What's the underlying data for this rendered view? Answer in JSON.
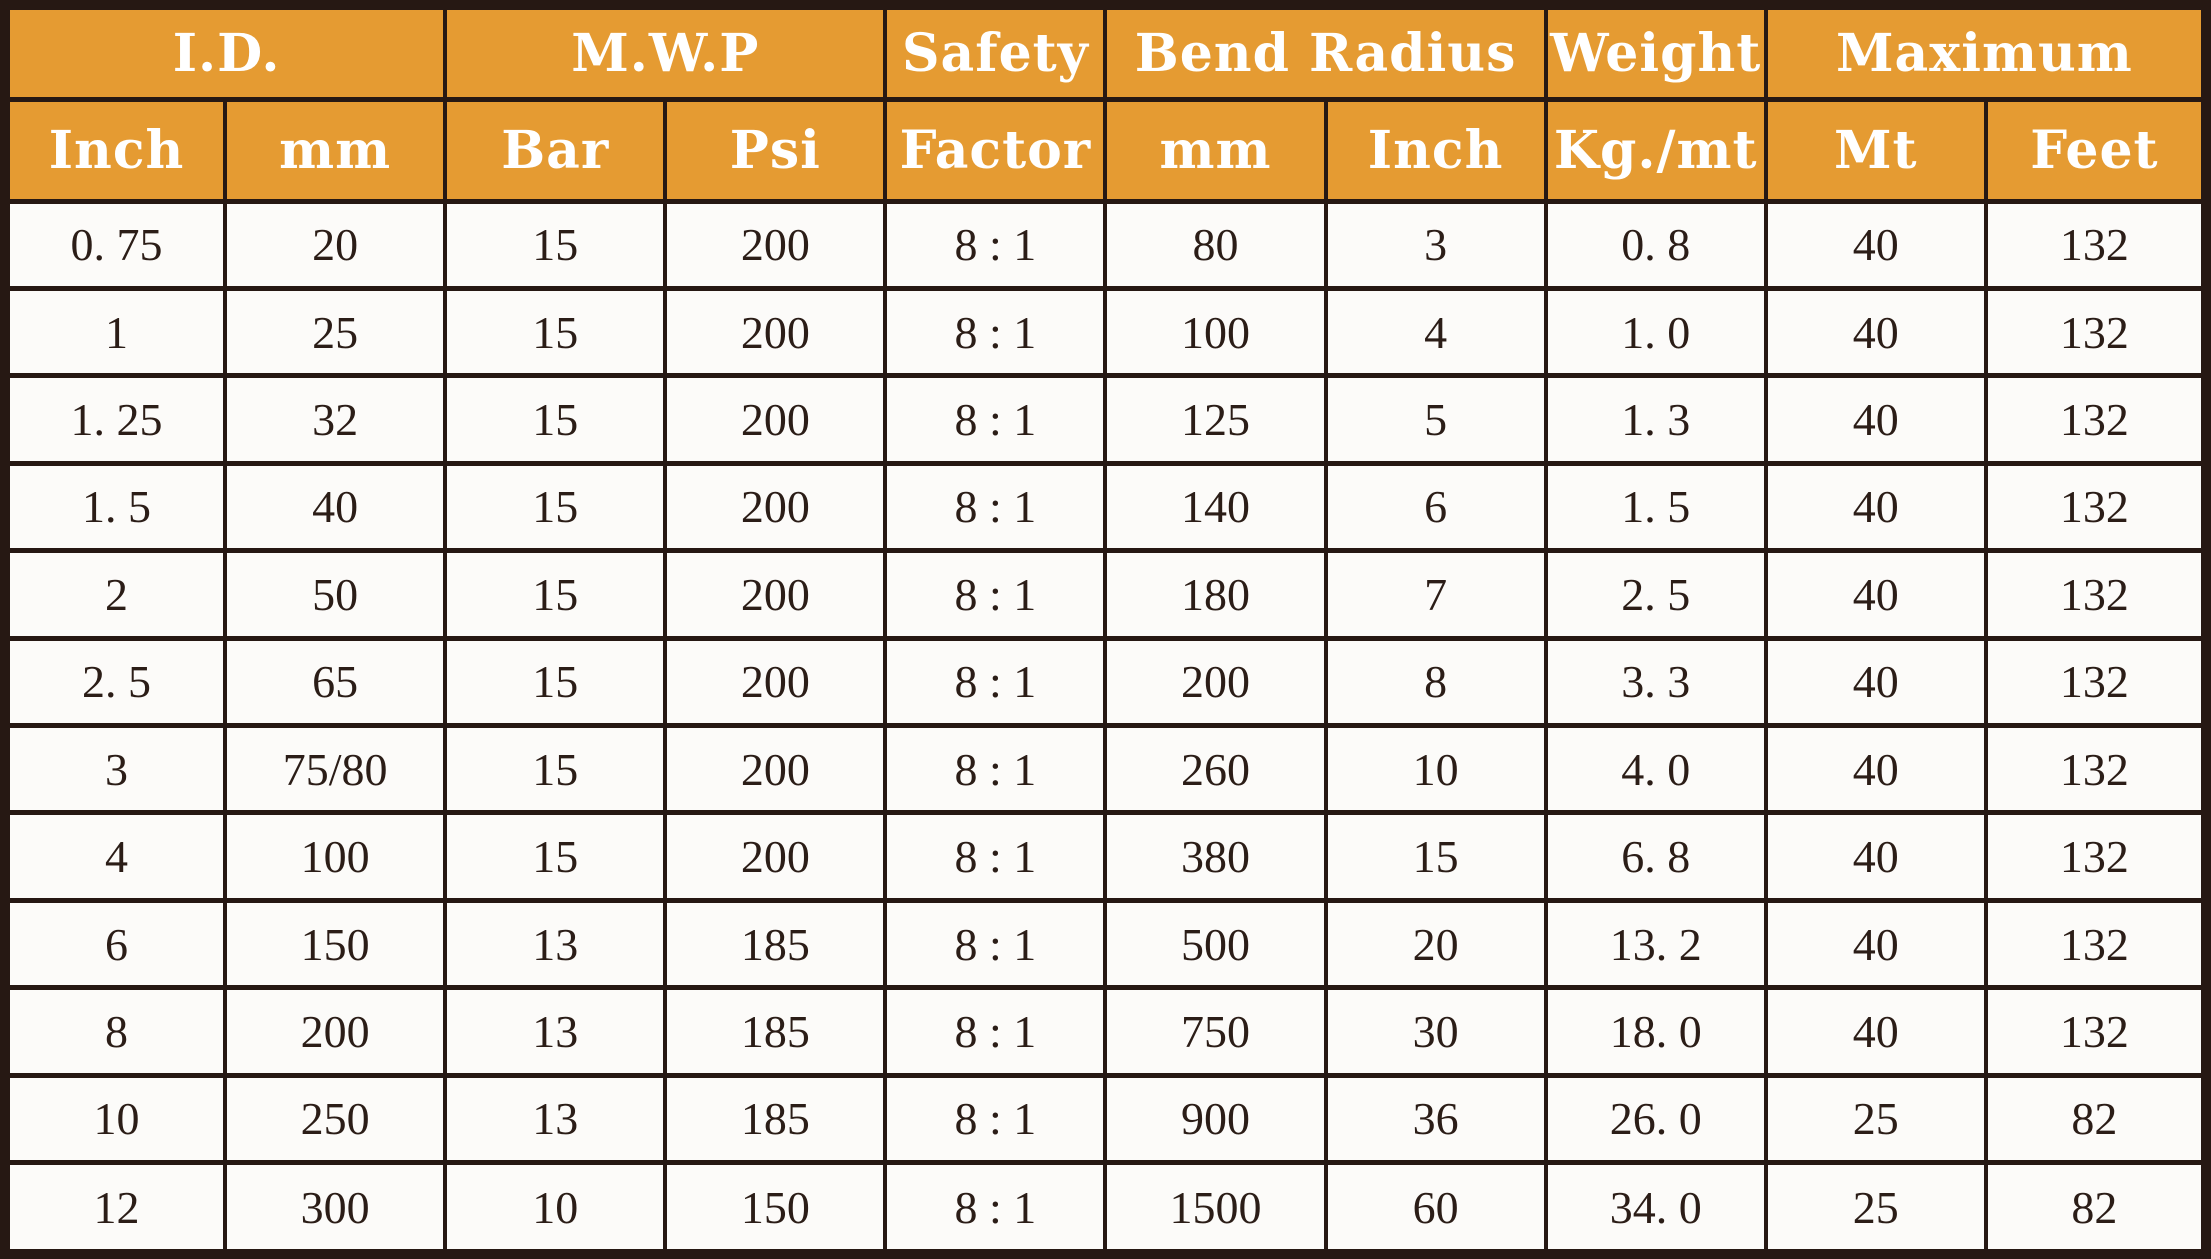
{
  "colors": {
    "header_bg": "#E59B32",
    "header_text": "#FFFFFF",
    "border": "#261813",
    "cell_bg": "#FCFBF9",
    "cell_text": "#2B1D17"
  },
  "table": {
    "top_headers": [
      {
        "label": "I.D.",
        "colspan": 2
      },
      {
        "label": "M.W.P",
        "colspan": 2
      },
      {
        "label": "Safety",
        "colspan": 1
      },
      {
        "label": "Bend Radius",
        "colspan": 2
      },
      {
        "label": "Weight",
        "colspan": 1
      },
      {
        "label": "Maximum",
        "colspan": 2
      }
    ],
    "sub_headers": [
      "Inch",
      "mm",
      "Bar",
      "Psi",
      "Factor",
      "mm",
      "Inch",
      "Kg./mt",
      "Mt",
      "Feet"
    ],
    "rows": [
      [
        "0. 75",
        "20",
        "15",
        "200",
        "8 : 1",
        "80",
        "3",
        "0. 8",
        "40",
        "132"
      ],
      [
        "1",
        "25",
        "15",
        "200",
        "8 : 1",
        "100",
        "4",
        "1. 0",
        "40",
        "132"
      ],
      [
        "1. 25",
        "32",
        "15",
        "200",
        "8 : 1",
        "125",
        "5",
        "1. 3",
        "40",
        "132"
      ],
      [
        "1. 5",
        "40",
        "15",
        "200",
        "8 : 1",
        "140",
        "6",
        "1. 5",
        "40",
        "132"
      ],
      [
        "2",
        "50",
        "15",
        "200",
        "8 : 1",
        "180",
        "7",
        "2. 5",
        "40",
        "132"
      ],
      [
        "2. 5",
        "65",
        "15",
        "200",
        "8 : 1",
        "200",
        "8",
        "3. 3",
        "40",
        "132"
      ],
      [
        "3",
        "75/80",
        "15",
        "200",
        "8 : 1",
        "260",
        "10",
        "4. 0",
        "40",
        "132"
      ],
      [
        "4",
        "100",
        "15",
        "200",
        "8 : 1",
        "380",
        "15",
        "6. 8",
        "40",
        "132"
      ],
      [
        "6",
        "150",
        "13",
        "185",
        "8 : 1",
        "500",
        "20",
        "13. 2",
        "40",
        "132"
      ],
      [
        "8",
        "200",
        "13",
        "185",
        "8 : 1",
        "750",
        "30",
        "18. 0",
        "40",
        "132"
      ],
      [
        "10",
        "250",
        "13",
        "185",
        "8 : 1",
        "900",
        "36",
        "26. 0",
        "25",
        "82"
      ],
      [
        "12",
        "300",
        "10",
        "150",
        "8 : 1",
        "1500",
        "60",
        "34. 0",
        "25",
        "82"
      ]
    ]
  },
  "chart_data": {
    "type": "table",
    "title": "Hose specification table",
    "column_groups": [
      {
        "group": "I.D.",
        "columns": [
          "Inch",
          "mm"
        ]
      },
      {
        "group": "M.W.P",
        "columns": [
          "Bar",
          "Psi"
        ]
      },
      {
        "group": "Safety",
        "columns": [
          "Factor"
        ]
      },
      {
        "group": "Bend Radius",
        "columns": [
          "mm",
          "Inch"
        ]
      },
      {
        "group": "Weight",
        "columns": [
          "Kg./mt"
        ]
      },
      {
        "group": "Maximum",
        "columns": [
          "Mt",
          "Feet"
        ]
      }
    ],
    "columns": [
      "I.D. Inch",
      "I.D. mm",
      "M.W.P Bar",
      "M.W.P Psi",
      "Safety Factor",
      "Bend Radius mm",
      "Bend Radius Inch",
      "Weight Kg./mt",
      "Maximum Mt",
      "Maximum Feet"
    ],
    "rows": [
      [
        0.75,
        20,
        15,
        200,
        "8:1",
        80,
        3,
        0.8,
        40,
        132
      ],
      [
        1,
        25,
        15,
        200,
        "8:1",
        100,
        4,
        1.0,
        40,
        132
      ],
      [
        1.25,
        32,
        15,
        200,
        "8:1",
        125,
        5,
        1.3,
        40,
        132
      ],
      [
        1.5,
        40,
        15,
        200,
        "8:1",
        140,
        6,
        1.5,
        40,
        132
      ],
      [
        2,
        50,
        15,
        200,
        "8:1",
        180,
        7,
        2.5,
        40,
        132
      ],
      [
        2.5,
        65,
        15,
        200,
        "8:1",
        200,
        8,
        3.3,
        40,
        132
      ],
      [
        3,
        "75/80",
        15,
        200,
        "8:1",
        260,
        10,
        4.0,
        40,
        132
      ],
      [
        4,
        100,
        15,
        200,
        "8:1",
        380,
        15,
        6.8,
        40,
        132
      ],
      [
        6,
        150,
        13,
        185,
        "8:1",
        500,
        20,
        13.2,
        40,
        132
      ],
      [
        8,
        200,
        13,
        185,
        "8:1",
        750,
        30,
        18.0,
        40,
        132
      ],
      [
        10,
        250,
        13,
        185,
        "8:1",
        900,
        36,
        26.0,
        25,
        82
      ],
      [
        12,
        300,
        10,
        150,
        "8:1",
        1500,
        60,
        34.0,
        25,
        82
      ]
    ]
  }
}
